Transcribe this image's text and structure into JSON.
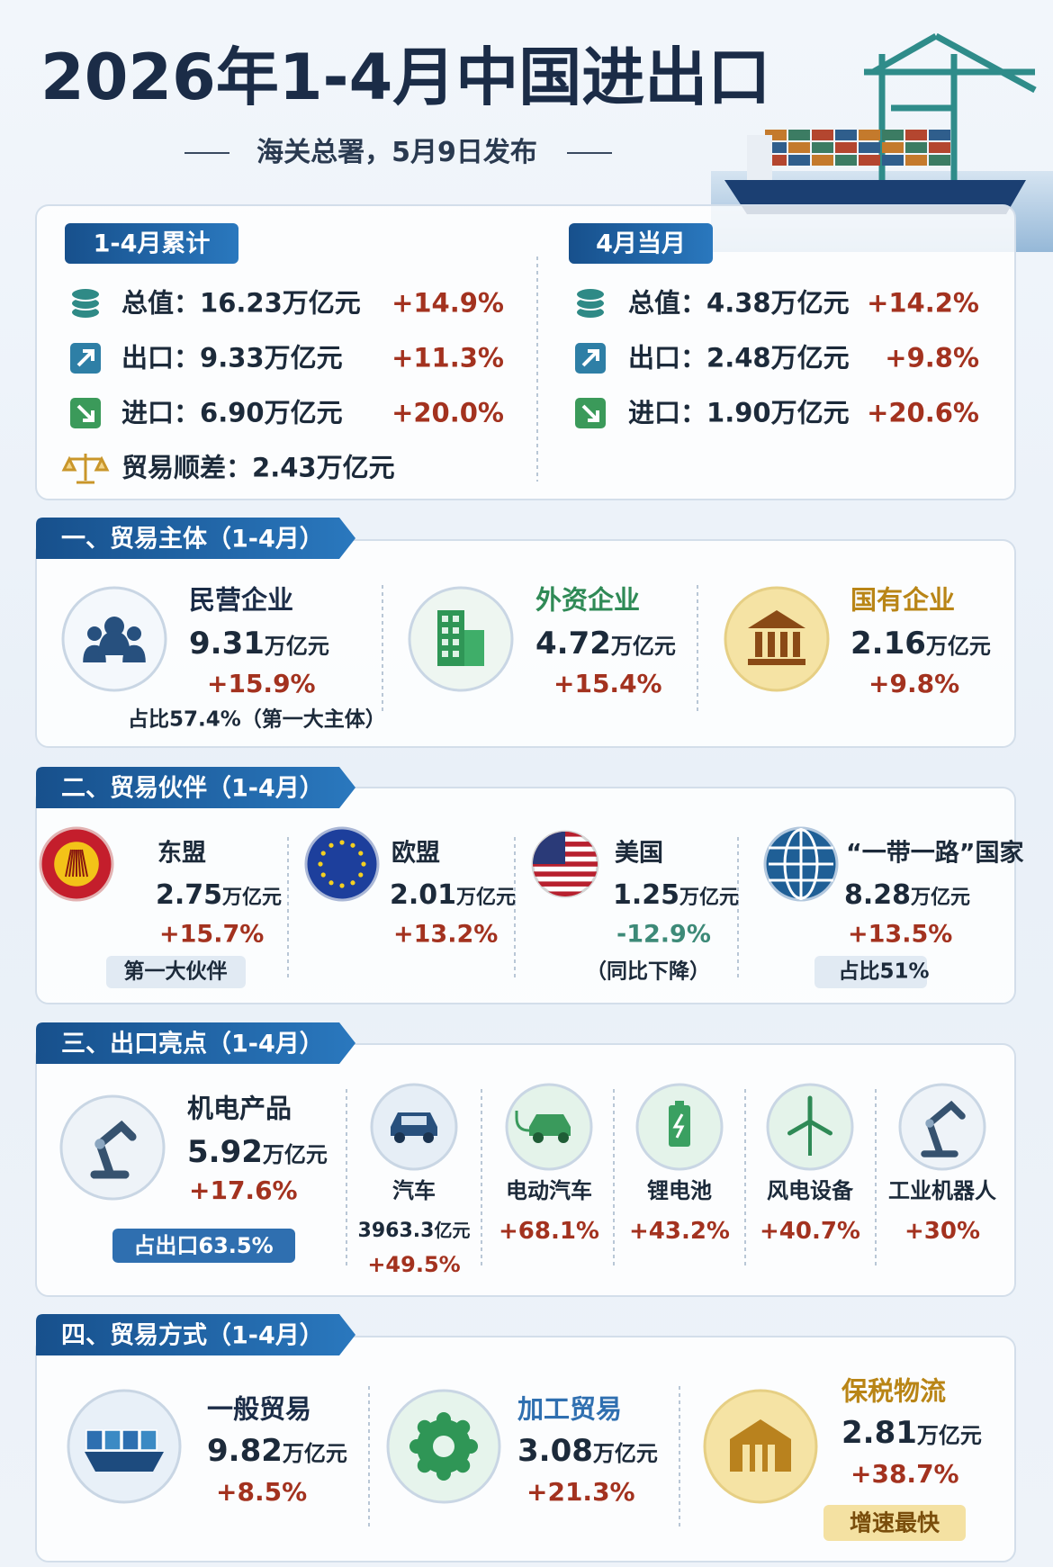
{
  "header": {
    "title": "2026年1-4月中国进出口",
    "subtitle": "海关总署，5月9日发布"
  },
  "overview": [
    {
      "tab": "1-4月累计",
      "rows": [
        {
          "label": "总值：",
          "value": "16.23万亿元",
          "change": "+14.9%"
        },
        {
          "label": "出口：",
          "value": "9.33万亿元",
          "change": "+11.3%"
        },
        {
          "label": "进口：",
          "value": "6.90万亿元",
          "change": "+20.0%"
        },
        {
          "label": "贸易顺差：",
          "value": "2.43万亿元"
        }
      ]
    },
    {
      "tab": "4月当月",
      "rows": [
        {
          "label": "总值：",
          "value": "4.38万亿元",
          "change": "+14.2%"
        },
        {
          "label": "出口：",
          "value": "2.48万亿元",
          "change": "+9.8%"
        },
        {
          "label": "进口：",
          "value": "1.90万亿元",
          "change": "+20.6%"
        }
      ]
    }
  ],
  "sections": [
    {
      "tab": "一、贸易主体（1-4月）",
      "items": [
        {
          "name": "民营企业",
          "value": "9.31",
          "unit": "万亿元",
          "change": "+15.9%",
          "note": "占比57.4%（第一大主体）"
        },
        {
          "name": "外资企业",
          "value": "4.72",
          "unit": "万亿元",
          "change": "+15.4%"
        },
        {
          "name": "国有企业",
          "value": "2.16",
          "unit": "万亿元",
          "change": "+9.8%"
        }
      ]
    },
    {
      "tab": "二、贸易伙伴（1-4月）",
      "items": [
        {
          "name": "东盟",
          "value": "2.75",
          "unit": "万亿元",
          "change": "+15.7%",
          "note": "第一大伙伴"
        },
        {
          "name": "欧盟",
          "value": "2.01",
          "unit": "万亿元",
          "change": "+13.2%"
        },
        {
          "name": "美国",
          "value": "1.25",
          "unit": "万亿元",
          "change": "-12.9%",
          "note": "（同比下降）"
        },
        {
          "name": "“一带一路”国家",
          "value": "8.28",
          "unit": "万亿元",
          "change": "+13.5%",
          "note": "占比51%"
        }
      ]
    },
    {
      "tab": "三、出口亮点（1-4月）",
      "items": [
        {
          "name": "机电产品",
          "value": "5.92",
          "unit": "万亿元",
          "change": "+17.6%",
          "note": "占出口63.5%"
        },
        {
          "name": "汽车",
          "value": "3963.3",
          "unit": "亿元",
          "change": "+49.5%"
        },
        {
          "name": "电动汽车",
          "change": "+68.1%"
        },
        {
          "name": "锂电池",
          "change": "+43.2%"
        },
        {
          "name": "风电设备",
          "change": "+40.7%"
        },
        {
          "name": "工业机器人",
          "change": "+30%"
        }
      ]
    },
    {
      "tab": "四、贸易方式（1-4月）",
      "items": [
        {
          "name": "一般贸易",
          "value": "9.82",
          "unit": "万亿元",
          "change": "+8.5%"
        },
        {
          "name": "加工贸易",
          "value": "3.08",
          "unit": "万亿元",
          "change": "+21.3%"
        },
        {
          "name": "保税物流",
          "value": "2.81",
          "unit": "万亿元",
          "change": "+38.7%",
          "note": "增速最快"
        }
      ]
    }
  ]
}
